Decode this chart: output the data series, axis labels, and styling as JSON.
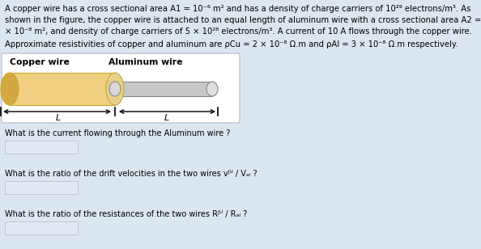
{
  "bg_color": "#dce6f1",
  "white": "#ffffff",
  "text_color": "#000000",
  "copper_color": "#f0d080",
  "copper_edge": "#c8a830",
  "copper_dark": "#d4a840",
  "aluminum_color": "#c8c8c8",
  "aluminum_edge": "#888888",
  "aluminum_light": "#e0e0e0",
  "answer_box_color": "#e4eaf4",
  "answer_box_edge": "#c0c8d8",
  "line1": "A copper wire has a cross sectional area A1 = 10⁻⁶ m² and has a density of charge carriers of 10²⁹ electrons/m³. As",
  "line2": "shown in the figure, the copper wire is attached to an equal length of aluminum wire with a cross sectional area A2 = 8",
  "line3": "× 10⁻⁸ m², and density of charge carriers of 5 × 10²⁸ electrons/m³. A current of 10 A flows through the copper wire.",
  "line4": "Approximate resistivities of copper and aluminum are ρCu = 2 × 10⁻⁸ Ω.m and ρAl = 3 × 10⁻⁸ Ω.m respectively.",
  "copper_label": "Copper wire",
  "aluminum_label": "Aluminum wire",
  "q1": "What is the current flowing through the Aluminum wire ?",
  "q2": "What is the ratio of the drift velocities in the two wires vᴶᵁ / Vₐₗ ?",
  "q3": "What is the ratio of the resistances of the two wires Rᴶᵁ / Rₐₗ ?",
  "fontsize_body": 7.2,
  "fontsize_label": 7.8,
  "fontsize_q": 7.0
}
